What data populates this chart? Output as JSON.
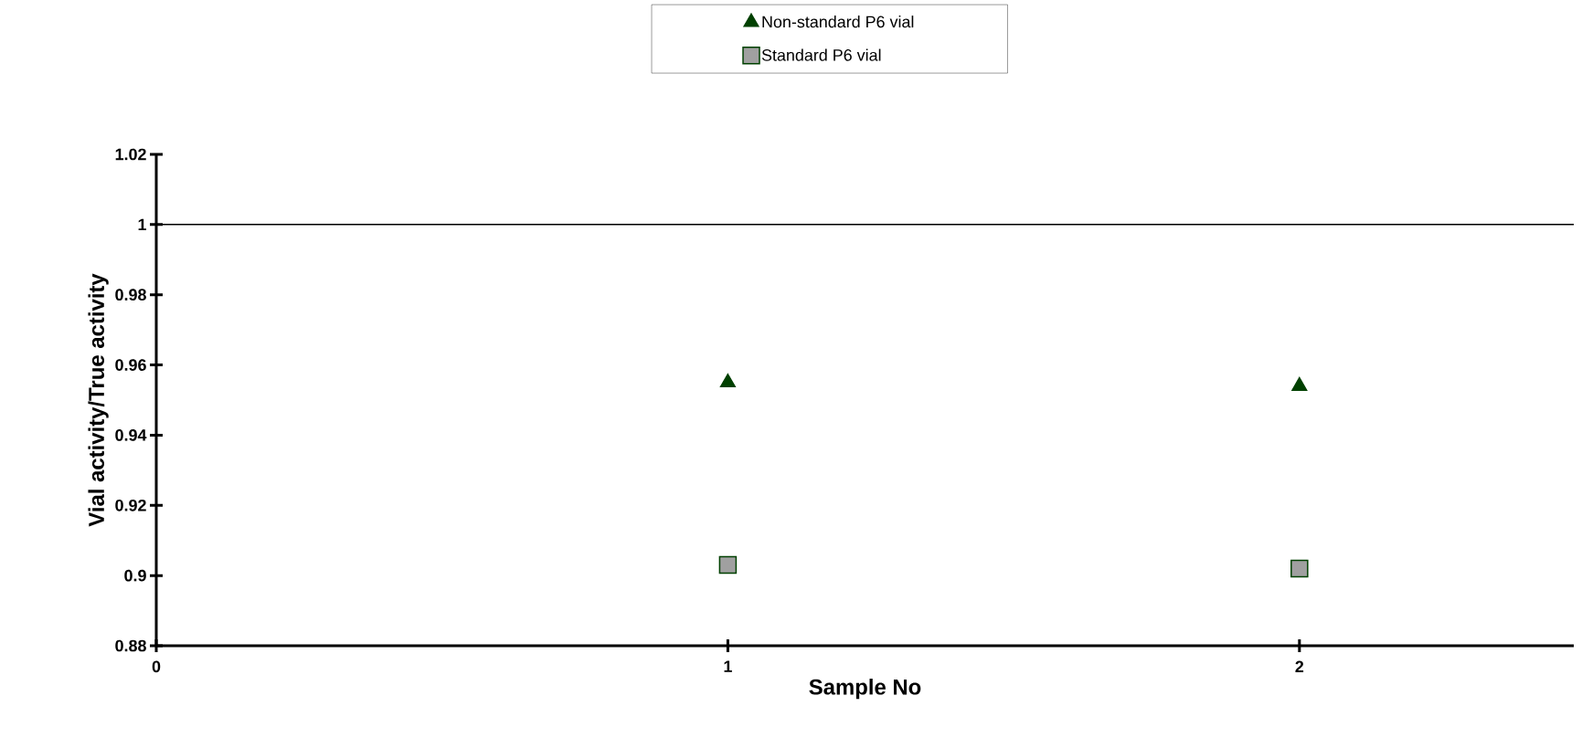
{
  "chart_data": {
    "type": "scatter",
    "xlabel": "Sample No",
    "ylabel": "Vial  activity/True activity",
    "x": [
      1,
      2
    ],
    "xlim": [
      0,
      2.48
    ],
    "xticks": [
      0,
      1,
      2
    ],
    "ylim": [
      0.88,
      1.02
    ],
    "yticks": [
      0.88,
      0.9,
      0.92,
      0.94,
      0.96,
      0.98,
      1,
      1.02
    ],
    "series": [
      {
        "name": "Non-standard P6 vial",
        "color": "#004000",
        "marker": "triangle",
        "values": [
          0.955,
          0.954
        ]
      },
      {
        "name": "Standard P6 vial",
        "color": "#a0a0a0",
        "marker": "square",
        "values": [
          0.903,
          0.902
        ]
      }
    ],
    "ref_lines": [
      {
        "axis": "y",
        "value": 1,
        "color": "#000000"
      }
    ],
    "legend": "top"
  }
}
